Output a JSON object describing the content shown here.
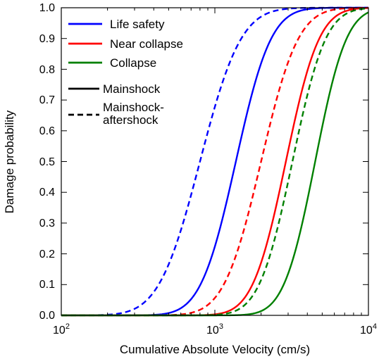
{
  "chart_data": {
    "type": "line",
    "title": "",
    "xlabel": "Cumulative Absolute Velocity (cm/s)",
    "ylabel": "Damage probability",
    "xscale": "log",
    "xlim": [
      100,
      10000
    ],
    "ylim": [
      0,
      1
    ],
    "grid": false,
    "legend_placement": "top-left",
    "x_ticks": [
      {
        "value": 100,
        "base": "10",
        "exp": "2"
      },
      {
        "value": 1000,
        "base": "10",
        "exp": "3"
      },
      {
        "value": 10000,
        "base": "10",
        "exp": "4"
      }
    ],
    "y_ticks": [
      "0.0",
      "0.1",
      "0.2",
      "0.3",
      "0.4",
      "0.5",
      "0.6",
      "0.7",
      "0.8",
      "0.9",
      "1.0"
    ],
    "series": [
      {
        "name": "Life safety",
        "ground_motion": "Mainshock-aftershock",
        "color": "#0000ff",
        "dash": "dashed",
        "median": 800,
        "beta": 0.21
      },
      {
        "name": "Life safety",
        "ground_motion": "Mainshock",
        "color": "#0000ff",
        "dash": "solid",
        "median": 1370,
        "beta": 0.18
      },
      {
        "name": "Near collapse",
        "ground_motion": "Mainshock-aftershock",
        "color": "#ff0000",
        "dash": "dashed",
        "median": 2000,
        "beta": 0.19
      },
      {
        "name": "Near collapse",
        "ground_motion": "Mainshock",
        "color": "#ff0000",
        "dash": "solid",
        "median": 2900,
        "beta": 0.17
      },
      {
        "name": "Collapse",
        "ground_motion": "Mainshock-aftershock",
        "color": "#008000",
        "dash": "dashed",
        "median": 3200,
        "beta": 0.17
      },
      {
        "name": "Collapse",
        "ground_motion": "Mainshock",
        "color": "#008000",
        "dash": "solid",
        "median": 4500,
        "beta": 0.16
      }
    ],
    "legend": {
      "colors": [
        {
          "label": "Life safety",
          "color": "#0000ff"
        },
        {
          "label": "Near collapse",
          "color": "#ff0000"
        },
        {
          "label": "Collapse",
          "color": "#008000"
        }
      ],
      "styles": [
        {
          "label": "Mainshock",
          "dash": "solid"
        },
        {
          "label_lines": [
            "Mainshock-",
            "aftershock"
          ],
          "dash": "dashed"
        }
      ]
    }
  }
}
